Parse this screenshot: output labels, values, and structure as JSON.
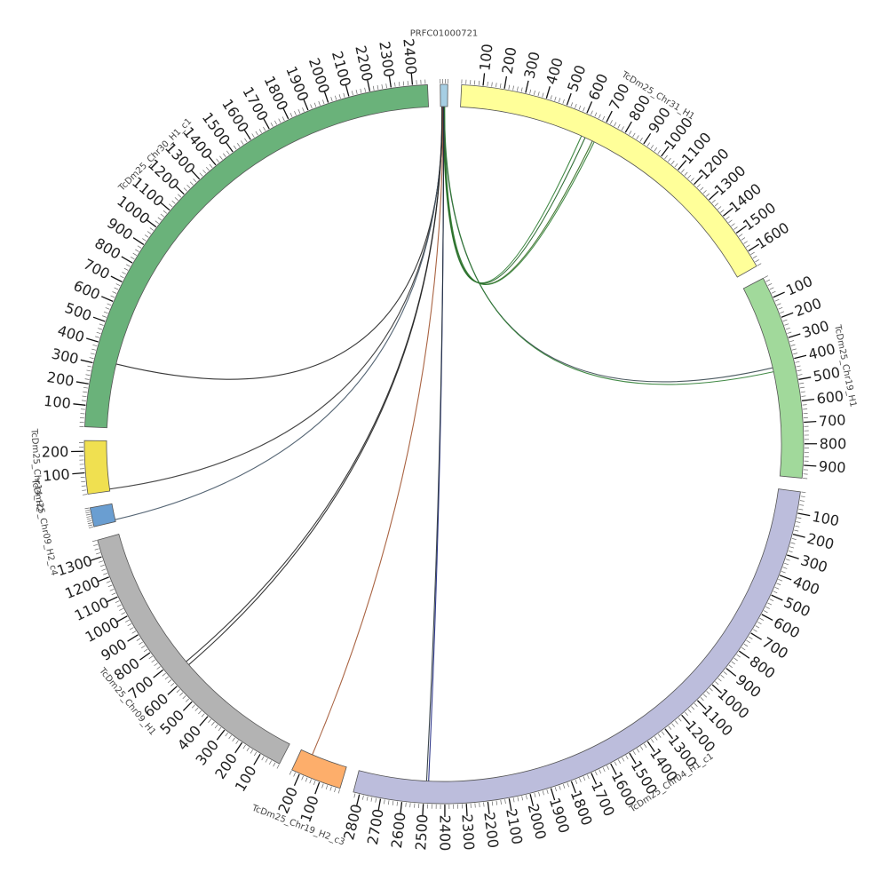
{
  "chart_data": {
    "type": "chord",
    "tick_unit_labels": "ticks every 100 units; small minor ticks between",
    "segments": [
      {
        "id": "prfc",
        "label": "PRFC01000721",
        "length": 30,
        "color": "#a6cee3",
        "ticks": []
      },
      {
        "id": "chr31",
        "label": "TcDm25_Chr31_H1",
        "length": 1680,
        "color": "#ffff99",
        "ticks": [
          100,
          200,
          300,
          400,
          500,
          600,
          700,
          800,
          900,
          1000,
          1100,
          1200,
          1300,
          1400,
          1500,
          1600
        ]
      },
      {
        "id": "chr19h1",
        "label": "TcDm25_Chr19_H1",
        "length": 960,
        "color": "#a1d99b",
        "ticks": [
          100,
          200,
          300,
          400,
          500,
          600,
          700,
          800,
          900
        ]
      },
      {
        "id": "chr04",
        "label": "TcDm25_Chr04_H1_c1",
        "length": 2830,
        "color": "#bcbddc",
        "ticks": [
          100,
          200,
          300,
          400,
          500,
          600,
          700,
          800,
          900,
          1000,
          1100,
          1200,
          1300,
          1400,
          1500,
          1600,
          1700,
          1800,
          1900,
          2000,
          2100,
          2200,
          2300,
          2400,
          2500,
          2600,
          2700,
          2800
        ]
      },
      {
        "id": "chr19h2",
        "label": "TcDm25_Chr19_H2_c3",
        "length": 240,
        "color": "#fdae6b",
        "ticks": [
          100,
          200
        ]
      },
      {
        "id": "chr09h1",
        "label": "TcDm25_Chr09_H1",
        "length": 1380,
        "color": "#b3b3b3",
        "ticks": [
          100,
          200,
          300,
          400,
          500,
          600,
          700,
          800,
          900,
          1000,
          1100,
          1200,
          1300
        ]
      },
      {
        "id": "chr09h2",
        "label": "TcDm25_Chr09_H2_c4",
        "length": 90,
        "color": "#6a9ed1",
        "ticks": []
      },
      {
        "id": "chr14h2",
        "label": "TcDm25_Chr14_H2",
        "length": 250,
        "color": "#f0e050",
        "ticks": [
          100,
          200
        ]
      },
      {
        "id": "chr30",
        "label": "TcDm25_Chr30_H1_c1",
        "length": 2470,
        "color": "#6ab27a",
        "ticks": [
          100,
          200,
          300,
          400,
          500,
          600,
          700,
          800,
          900,
          1000,
          1100,
          1200,
          1300,
          1400,
          1500,
          1600,
          1700,
          1800,
          1900,
          2000,
          2100,
          2200,
          2300,
          2400
        ]
      }
    ],
    "links": [
      {
        "from": "prfc",
        "from_pos": 12,
        "to": "chr31",
        "to_pos": 620,
        "color": "#2e7d32"
      },
      {
        "from": "prfc",
        "from_pos": 14,
        "to": "chr31",
        "to_pos": 640,
        "color": "#1b5e20"
      },
      {
        "from": "prfc",
        "from_pos": 16,
        "to": "chr31",
        "to_pos": 680,
        "color": "#33691e"
      },
      {
        "from": "prfc",
        "from_pos": 18,
        "to": "chr31",
        "to_pos": 690,
        "color": "#2e7d32"
      },
      {
        "from": "prfc",
        "from_pos": 15,
        "to": "chr19h1",
        "to_pos": 420,
        "color": "#37474f"
      },
      {
        "from": "prfc",
        "from_pos": 17,
        "to": "chr19h1",
        "to_pos": 440,
        "color": "#2e7d32"
      },
      {
        "from": "prfc",
        "from_pos": 10,
        "to": "chr30",
        "to_pos": 320,
        "color": "#222222"
      },
      {
        "from": "prfc",
        "from_pos": 9,
        "to": "chr14h2",
        "to_pos": 10,
        "color": "#333333"
      },
      {
        "from": "prfc",
        "from_pos": 8,
        "to": "chr09h2",
        "to_pos": 10,
        "color": "#445566"
      },
      {
        "from": "prfc",
        "from_pos": 7,
        "to": "chr09h1",
        "to_pos": 640,
        "color": "#222222"
      },
      {
        "from": "prfc",
        "from_pos": 6,
        "to": "chr09h1",
        "to_pos": 660,
        "color": "#222222"
      },
      {
        "from": "prfc",
        "from_pos": 11,
        "to": "chr19h2",
        "to_pos": 180,
        "color": "#a0522d"
      },
      {
        "from": "prfc",
        "from_pos": 13,
        "to": "chr04",
        "to_pos": 2480,
        "color": "#1a237e"
      },
      {
        "from": "prfc",
        "from_pos": 13.5,
        "to": "chr04",
        "to_pos": 2490,
        "color": "#263238"
      }
    ]
  }
}
